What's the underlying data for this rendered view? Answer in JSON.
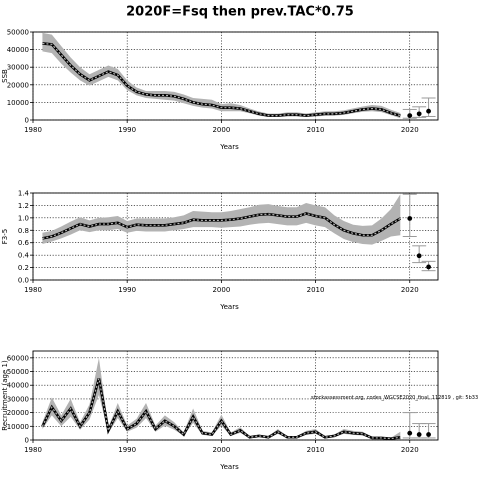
{
  "figure": {
    "title": "2020F=Fsq then prev.TAC*0.75",
    "note": "stockassessment.org, codes_WGCSE2020_final, 112819 , git: 5b33"
  },
  "chart_data": [
    {
      "type": "line",
      "xlabel": "Years",
      "ylabel": "SSB",
      "xlim": [
        1980,
        2023
      ],
      "ylim": [
        0,
        50000
      ],
      "xticks": [
        "1980",
        "1990",
        "2000",
        "2010",
        "2020"
      ],
      "yticks": [
        "0",
        "10000",
        "20000",
        "30000",
        "40000",
        "50000"
      ],
      "grid": true,
      "series": [
        {
          "x": [
            1981,
            1982,
            1983,
            1984,
            1985,
            1986,
            1987,
            1988,
            1989,
            1990,
            1991,
            1992,
            1993,
            1994,
            1995,
            1996,
            1997,
            1998,
            1999,
            2000,
            2001,
            2002,
            2003,
            2004,
            2005,
            2006,
            2007,
            2008,
            2009,
            2010,
            2011,
            2012,
            2013,
            2014,
            2015,
            2016,
            2017,
            2018,
            2019
          ],
          "values": [
            43500,
            43000,
            37000,
            31000,
            26000,
            22500,
            25000,
            27500,
            25500,
            19500,
            16000,
            14500,
            14000,
            14000,
            13500,
            12000,
            10000,
            9000,
            8500,
            7000,
            7000,
            6500,
            5000,
            3500,
            2500,
            2500,
            3000,
            3000,
            2500,
            3000,
            3500,
            3500,
            4000,
            5000,
            6000,
            6500,
            6000,
            4000,
            2500
          ],
          "lower": [
            39000,
            38000,
            32000,
            27000,
            22500,
            19500,
            22000,
            24500,
            22500,
            17000,
            14000,
            12500,
            12000,
            11500,
            11000,
            9500,
            8000,
            7000,
            6500,
            5000,
            5000,
            5000,
            3800,
            2500,
            1700,
            1700,
            2000,
            2000,
            1700,
            2000,
            2400,
            2500,
            2900,
            3800,
            4700,
            5000,
            4500,
            2800,
            1000
          ],
          "upper": [
            49500,
            48500,
            42000,
            35500,
            30000,
            26000,
            28500,
            31000,
            29000,
            22500,
            18500,
            16500,
            16500,
            16500,
            16000,
            14500,
            12500,
            12000,
            11500,
            9000,
            9500,
            8500,
            6500,
            4800,
            3600,
            3600,
            4300,
            4300,
            3700,
            4300,
            4900,
            5000,
            5500,
            6600,
            7700,
            8500,
            8000,
            5800,
            4000
          ]
        }
      ],
      "projection": [
        {
          "x": 2020,
          "value": 2500,
          "lower": 1000,
          "upper": 6000
        },
        {
          "x": 2021,
          "value": 3500,
          "lower": 1500,
          "upper": 7500
        },
        {
          "x": 2022,
          "value": 5000,
          "lower": 2000,
          "upper": 12500
        }
      ]
    },
    {
      "type": "line",
      "xlabel": "Years",
      "ylabel": "F3-5",
      "xlim": [
        1980,
        2023
      ],
      "ylim": [
        0,
        1.4
      ],
      "xticks": [
        "1980",
        "1990",
        "2000",
        "2010",
        "2020"
      ],
      "yticks": [
        "0.0",
        "0.2",
        "0.4",
        "0.6",
        "0.8",
        "1.0",
        "1.2",
        "1.4"
      ],
      "grid": true,
      "series": [
        {
          "x": [
            1981,
            1982,
            1983,
            1984,
            1985,
            1986,
            1987,
            1988,
            1989,
            1990,
            1991,
            1992,
            1993,
            1994,
            1995,
            1996,
            1997,
            1998,
            1999,
            2000,
            2001,
            2002,
            2003,
            2004,
            2005,
            2006,
            2007,
            2008,
            2009,
            2010,
            2011,
            2012,
            2013,
            2014,
            2015,
            2016,
            2017,
            2018,
            2019
          ],
          "values": [
            0.67,
            0.7,
            0.76,
            0.83,
            0.9,
            0.86,
            0.9,
            0.9,
            0.92,
            0.85,
            0.89,
            0.88,
            0.88,
            0.88,
            0.9,
            0.92,
            0.97,
            0.96,
            0.96,
            0.96,
            0.97,
            0.99,
            1.02,
            1.05,
            1.06,
            1.04,
            1.02,
            1.02,
            1.07,
            1.03,
            1.0,
            0.89,
            0.8,
            0.75,
            0.72,
            0.72,
            0.8,
            0.9,
            0.99
          ],
          "lower": [
            0.58,
            0.62,
            0.67,
            0.73,
            0.8,
            0.77,
            0.8,
            0.8,
            0.82,
            0.76,
            0.79,
            0.78,
            0.78,
            0.78,
            0.8,
            0.82,
            0.85,
            0.85,
            0.85,
            0.84,
            0.85,
            0.86,
            0.89,
            0.91,
            0.92,
            0.9,
            0.88,
            0.88,
            0.92,
            0.88,
            0.85,
            0.75,
            0.66,
            0.61,
            0.58,
            0.57,
            0.63,
            0.7,
            0.72
          ],
          "upper": [
            0.76,
            0.79,
            0.86,
            0.94,
            1.01,
            0.96,
            1.0,
            1.01,
            1.03,
            0.95,
            0.99,
            0.99,
            0.99,
            0.99,
            1.01,
            1.04,
            1.11,
            1.1,
            1.09,
            1.09,
            1.11,
            1.14,
            1.17,
            1.21,
            1.22,
            1.19,
            1.17,
            1.17,
            1.24,
            1.2,
            1.17,
            1.04,
            0.95,
            0.89,
            0.87,
            0.88,
            0.99,
            1.14,
            1.38
          ]
        }
      ],
      "projection": [
        {
          "x": 2020,
          "value": 0.99,
          "lower": 0.7,
          "upper": 1.38
        },
        {
          "x": 2021,
          "value": 0.39,
          "lower": 0.28,
          "upper": 0.55
        },
        {
          "x": 2022,
          "value": 0.21,
          "lower": 0.15,
          "upper": 0.3
        }
      ]
    },
    {
      "type": "line",
      "xlabel": "Years",
      "ylabel": "Recruitment (age 1)",
      "xlim": [
        1980,
        2023
      ],
      "ylim": [
        0,
        65000
      ],
      "xticks": [
        "1980",
        "1990",
        "2000",
        "2010",
        "2020"
      ],
      "yticks": [
        "0",
        "10000",
        "20000",
        "30000",
        "40000",
        "50000",
        "60000"
      ],
      "grid": true,
      "series": [
        {
          "x": [
            1981,
            1982,
            1983,
            1984,
            1985,
            1986,
            1987,
            1988,
            1989,
            1990,
            1991,
            1992,
            1993,
            1994,
            1995,
            1996,
            1997,
            1998,
            1999,
            2000,
            2001,
            2002,
            2003,
            2004,
            2005,
            2006,
            2007,
            2008,
            2009,
            2010,
            2011,
            2012,
            2013,
            2014,
            2015,
            2016,
            2017,
            2018,
            2019
          ],
          "values": [
            10000,
            24000,
            14000,
            23000,
            10000,
            20000,
            45000,
            7000,
            21000,
            8000,
            12000,
            21000,
            8000,
            14000,
            10000,
            4000,
            17000,
            5000,
            4000,
            14000,
            4000,
            7000,
            2000,
            3000,
            2000,
            6000,
            2000,
            2000,
            5000,
            6000,
            2000,
            3000,
            6000,
            5000,
            4500,
            1500,
            1500,
            1000,
            2000
          ],
          "lower": [
            8000,
            18000,
            10000,
            17000,
            7500,
            15000,
            33000,
            5000,
            16000,
            6000,
            9000,
            16000,
            6000,
            10500,
            7500,
            3000,
            12500,
            3700,
            3000,
            10500,
            3000,
            5200,
            1500,
            2200,
            1500,
            4500,
            1500,
            1500,
            3700,
            4500,
            1500,
            2200,
            4500,
            3700,
            3300,
            1000,
            1000,
            600,
            500
          ],
          "upper": [
            13000,
            31000,
            18000,
            30000,
            13000,
            26000,
            60000,
            9000,
            27000,
            10500,
            15500,
            27000,
            10500,
            18000,
            13000,
            5500,
            23000,
            6700,
            5500,
            18500,
            5500,
            9300,
            2700,
            4000,
            2700,
            8000,
            2700,
            2700,
            6700,
            8000,
            2700,
            4000,
            8000,
            6700,
            6000,
            2200,
            2200,
            1600,
            6000
          ]
        }
      ],
      "projection": [
        {
          "x": 2020,
          "value": 5000,
          "lower": 1500,
          "upper": 20000
        },
        {
          "x": 2021,
          "value": 4000,
          "lower": 1500,
          "upper": 12000
        },
        {
          "x": 2022,
          "value": 4000,
          "lower": 1500,
          "upper": 12000
        }
      ]
    }
  ]
}
